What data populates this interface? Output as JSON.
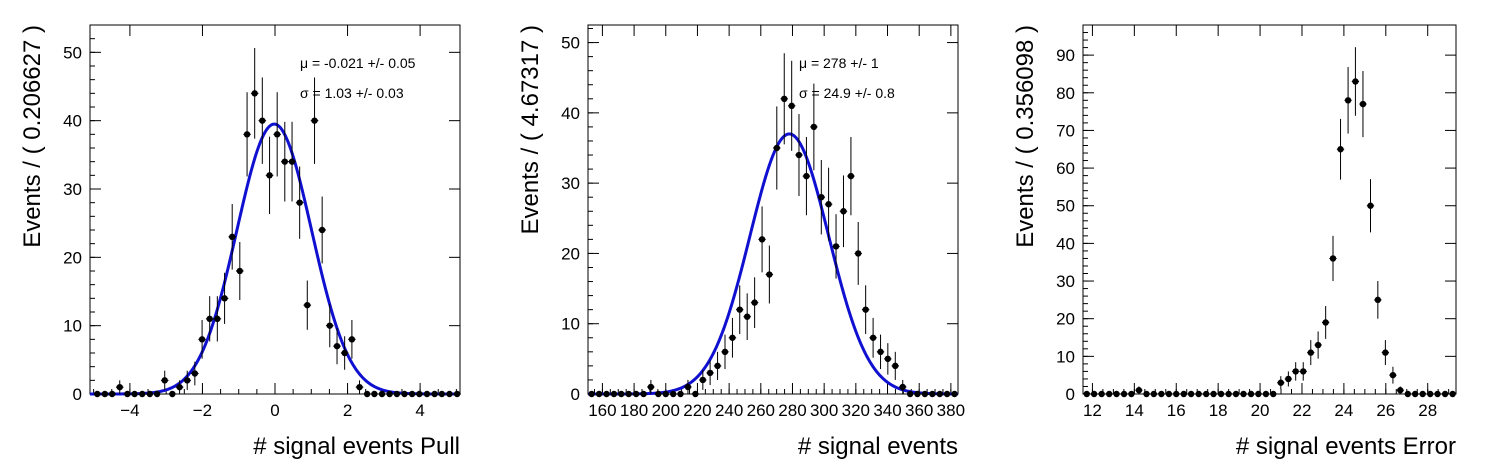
{
  "chart_data": [
    {
      "type": "scatter",
      "xlabel": "# signal events Pull",
      "ylabel": "Events / ( 0.206627 )",
      "xlim": [
        -5.1,
        5.1
      ],
      "ylim": [
        0,
        54
      ],
      "xticks": [
        -4,
        -2,
        0,
        2,
        4
      ],
      "xtick_labels": [
        "−4",
        "−2",
        "0",
        "2",
        "4"
      ],
      "yticks": [
        0,
        10,
        20,
        30,
        40,
        50
      ],
      "stats": [
        "μ = -0.021 +/- 0.05",
        "σ =  1.03 +/- 0.03"
      ],
      "fit": {
        "type": "gaussian",
        "mean": -0.021,
        "sigma": 1.03,
        "norm": 39.5,
        "color": "#1010d0"
      },
      "series": [
        {
          "x": [
            -4.9,
            -4.69,
            -4.49,
            -4.28,
            -4.07,
            -3.87,
            -3.66,
            -3.45,
            -3.25,
            -3.04,
            -2.83,
            -2.63,
            -2.42,
            -2.21,
            -2.01,
            -1.8,
            -1.59,
            -1.39,
            -1.18,
            -0.97,
            -0.77,
            -0.56,
            -0.35,
            -0.15,
            0.06,
            0.27,
            0.47,
            0.68,
            0.89,
            1.09,
            1.3,
            1.51,
            1.71,
            1.92,
            2.12,
            2.33,
            2.54,
            2.74,
            2.95,
            3.16,
            3.36,
            3.57,
            3.78,
            3.98,
            4.19,
            4.4,
            4.6,
            4.81,
            5.02
          ],
          "y": [
            0,
            0,
            0,
            1,
            0,
            0,
            0,
            0,
            0,
            2,
            0,
            1,
            2,
            3,
            8,
            11,
            11,
            14,
            23,
            18,
            38,
            44,
            40,
            32,
            38,
            34,
            34,
            28,
            13,
            40,
            24,
            10,
            7,
            6,
            8,
            1,
            0,
            0,
            0,
            0,
            0,
            0,
            0,
            0,
            0,
            0,
            0,
            0,
            0
          ]
        }
      ]
    },
    {
      "type": "scatter",
      "xlabel": "# signal events",
      "ylabel": "Events / ( 4.67317 )",
      "xlim": [
        150.9,
        384.5
      ],
      "ylim": [
        0,
        52.5
      ],
      "xticks": [
        160,
        180,
        200,
        220,
        240,
        260,
        280,
        300,
        320,
        340,
        360,
        380
      ],
      "xtick_labels": [
        "160",
        "180",
        "200",
        "220",
        "240",
        "260",
        "280",
        "300",
        "320",
        "340",
        "360",
        "380"
      ],
      "yticks": [
        0,
        10,
        20,
        30,
        40,
        50
      ],
      "stats": [
        "μ =  278 +/- 1",
        "σ =  24.9 +/- 0.8"
      ],
      "fit": {
        "type": "gaussian",
        "mean": 278,
        "sigma": 24.9,
        "norm": 37,
        "color": "#1010d0"
      },
      "series": [
        {
          "x": [
            153.2,
            157.9,
            162.6,
            167.3,
            171.9,
            176.6,
            181.3,
            186.0,
            190.6,
            195.3,
            200.0,
            204.7,
            209.3,
            214.0,
            218.7,
            223.4,
            228.0,
            232.7,
            237.4,
            242.1,
            246.7,
            251.4,
            256.1,
            260.8,
            265.4,
            270.1,
            274.8,
            279.5,
            284.1,
            288.8,
            293.5,
            298.2,
            302.8,
            307.5,
            312.2,
            316.9,
            321.5,
            326.2,
            330.9,
            335.6,
            340.2,
            344.9,
            349.6,
            354.3,
            358.9,
            363.6,
            368.3,
            373.0,
            377.6,
            382.3
          ],
          "y": [
            0,
            0,
            0,
            0,
            0,
            0,
            0,
            0,
            1,
            0,
            0,
            0,
            0,
            1,
            0,
            2,
            3,
            4,
            6,
            8,
            12,
            11,
            13,
            22,
            17,
            35,
            42,
            41,
            34,
            31,
            38,
            28,
            27,
            21,
            26,
            31,
            20,
            12,
            8,
            6,
            5,
            4,
            1,
            0,
            0,
            0,
            0,
            0,
            0,
            0
          ]
        }
      ]
    },
    {
      "type": "scatter",
      "xlabel": "# signal events Error",
      "ylabel": "Events / ( 0.356098 )",
      "xlim": [
        11.55,
        29.35
      ],
      "ylim": [
        0,
        98
      ],
      "xticks": [
        12,
        14,
        16,
        18,
        20,
        22,
        24,
        26,
        28
      ],
      "xtick_labels": [
        "12",
        "14",
        "16",
        "18",
        "20",
        "22",
        "24",
        "26",
        "28"
      ],
      "yticks": [
        0,
        10,
        20,
        30,
        40,
        50,
        60,
        70,
        80,
        90
      ],
      "stats": [],
      "series": [
        {
          "x": [
            11.73,
            12.08,
            12.44,
            12.8,
            13.15,
            13.51,
            13.86,
            14.22,
            14.58,
            14.93,
            15.29,
            15.65,
            16.0,
            16.36,
            16.71,
            17.07,
            17.43,
            17.78,
            18.14,
            18.5,
            18.85,
            19.21,
            19.57,
            19.92,
            20.28,
            20.63,
            20.99,
            21.35,
            21.7,
            22.06,
            22.42,
            22.77,
            23.13,
            23.48,
            23.84,
            24.2,
            24.55,
            24.91,
            25.27,
            25.62,
            25.98,
            26.34,
            26.69,
            27.05,
            27.4,
            27.76,
            28.12,
            28.47,
            28.83,
            29.19
          ],
          "y": [
            0,
            0,
            0,
            0,
            0,
            0,
            0,
            1,
            0,
            0,
            0,
            0,
            0,
            0,
            0,
            0,
            0,
            0,
            0,
            0,
            0,
            0,
            0,
            0,
            0,
            0,
            3,
            4,
            6,
            6,
            11,
            13,
            19,
            36,
            65,
            78,
            83,
            77,
            50,
            25,
            11,
            5,
            1,
            0,
            0,
            0,
            0,
            0,
            0,
            0
          ]
        }
      ]
    }
  ]
}
